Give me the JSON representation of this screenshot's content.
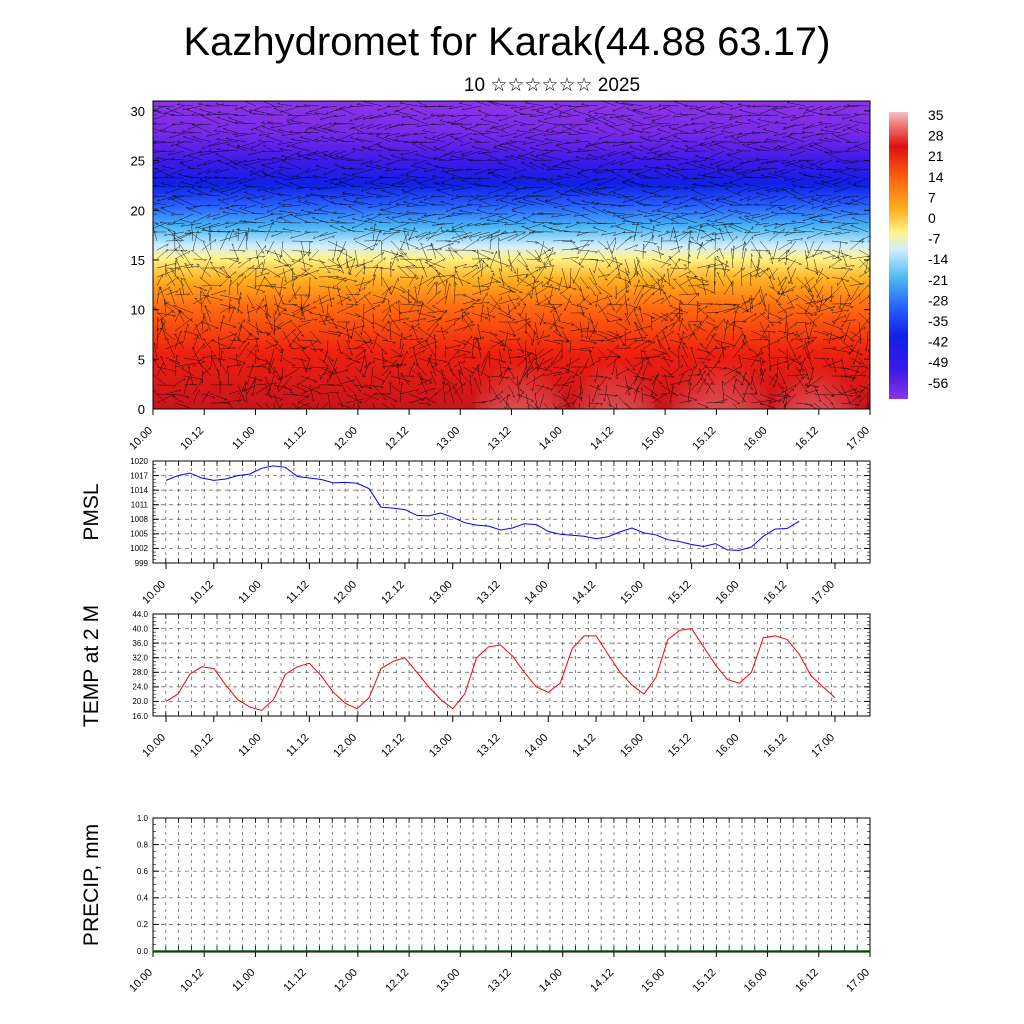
{
  "title": "Kazhydromet for Karak(44.88 63.17)",
  "subtitle": "10 ☆☆☆☆☆☆ 2025",
  "time_ticks": [
    "10.00",
    "10.12",
    "11.00",
    "11.12",
    "12.00",
    "12.12",
    "13.00",
    "13.12",
    "14.00",
    "14.12",
    "15.00",
    "15.12",
    "16.00",
    "16.12",
    "17.00"
  ],
  "chart_data": [
    {
      "type": "heatmap",
      "name": "temperature-height-section",
      "yticks": [
        "0",
        "5",
        "10",
        "15",
        "20",
        "25",
        "30"
      ],
      "ylim": [
        0,
        31
      ],
      "x": [
        "10.00",
        "17.00"
      ],
      "colorbar": {
        "labels": [
          "35",
          "28",
          "21",
          "14",
          "7",
          "0",
          "-7",
          "-14",
          "-21",
          "-28",
          "-35",
          "-42",
          "-49",
          "-56"
        ],
        "range": [
          -60,
          38
        ]
      },
      "overlay": "wind vectors"
    },
    {
      "type": "line",
      "ylabel": "PMSL",
      "yticks": [
        "1020",
        "1017",
        "1014",
        "1011",
        "1008",
        "1005",
        "1002",
        "999"
      ],
      "ylim": [
        999,
        1020
      ],
      "color": "#0000ff",
      "step_hours": 3,
      "values": [
        1016,
        1017,
        1017.5,
        1016.5,
        1016,
        1016.3,
        1017,
        1017.3,
        1018.5,
        1019,
        1018.7,
        1016.8,
        1016.5,
        1016.2,
        1015.5,
        1015.6,
        1015.4,
        1014.3,
        1010.5,
        1010.3,
        1010,
        1008.8,
        1008.7,
        1009.3,
        1008.4,
        1007.3,
        1006.8,
        1006.6,
        1005.8,
        1006.2,
        1007.1,
        1006.9,
        1005.5,
        1004.9,
        1004.7,
        1004.5,
        1004,
        1004.4,
        1005.4,
        1006.2,
        1005.2,
        1004.8,
        1003.8,
        1003.4,
        1002.8,
        1002.4,
        1003,
        1001.7,
        1001.6,
        1002.3,
        1004.5,
        1006,
        1006.1,
        1007.6
      ]
    },
    {
      "type": "line",
      "ylabel": "TEMP at 2 M",
      "yticks": [
        "44.0",
        "40.0",
        "36.0",
        "32.0",
        "28.0",
        "24.0",
        "20.0",
        "16.0"
      ],
      "ylim": [
        16,
        44
      ],
      "color": "#ff0000",
      "step_hours": 3,
      "values": [
        20,
        22,
        27.5,
        29.5,
        29,
        24.5,
        20.5,
        18.5,
        17.5,
        20.5,
        27.5,
        29.5,
        30.5,
        27,
        22.5,
        19.5,
        18,
        21,
        29,
        31,
        32,
        28,
        24,
        20.5,
        18,
        22,
        32,
        35,
        35.5,
        32.5,
        28,
        24,
        22.5,
        25,
        34.5,
        38,
        38,
        33,
        28,
        24.5,
        22,
        26.5,
        37,
        39.5,
        40,
        35,
        30,
        26,
        25,
        28,
        37.5,
        38,
        37,
        33,
        27,
        24,
        21
      ]
    },
    {
      "type": "bar",
      "ylabel": "PRECIP, mm",
      "yticks": [
        "1.0",
        "0.8",
        "0.6",
        "0.4",
        "0.2",
        "0.0"
      ],
      "ylim": [
        0,
        1
      ],
      "color": "#006400",
      "values": []
    }
  ]
}
